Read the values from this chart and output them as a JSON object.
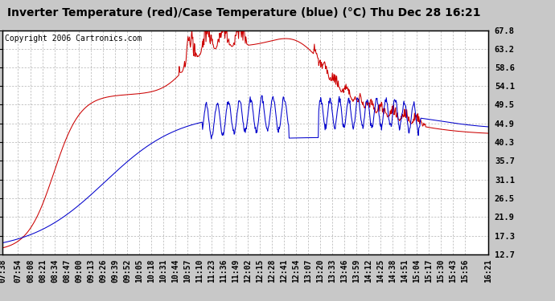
{
  "title": "Inverter Temperature (red)/Case Temperature (blue) (°C) Thu Dec 28 16:21",
  "copyright": "Copyright 2006 Cartronics.com",
  "yticks": [
    12.7,
    17.3,
    21.9,
    26.5,
    31.1,
    35.7,
    40.3,
    44.9,
    49.5,
    54.1,
    58.6,
    63.2,
    67.8
  ],
  "ylim": [
    12.7,
    67.8
  ],
  "bg_color": "#c8c8c8",
  "plot_bg_color": "#ffffff",
  "grid_color": "#999999",
  "red_color": "#cc0000",
  "blue_color": "#0000cc",
  "x_tick_labels": [
    "07:38",
    "07:54",
    "08:08",
    "08:21",
    "08:34",
    "08:47",
    "09:00",
    "09:13",
    "09:26",
    "09:39",
    "09:52",
    "10:05",
    "10:18",
    "10:31",
    "10:44",
    "10:57",
    "11:10",
    "11:23",
    "11:36",
    "11:49",
    "12:02",
    "12:15",
    "12:28",
    "12:41",
    "12:54",
    "13:07",
    "13:20",
    "13:33",
    "13:46",
    "13:59",
    "14:12",
    "14:25",
    "14:38",
    "14:51",
    "15:04",
    "15:17",
    "15:30",
    "15:43",
    "15:56",
    "16:21"
  ],
  "title_fontsize": 10,
  "copyright_fontsize": 7,
  "tick_fontsize": 7.5
}
